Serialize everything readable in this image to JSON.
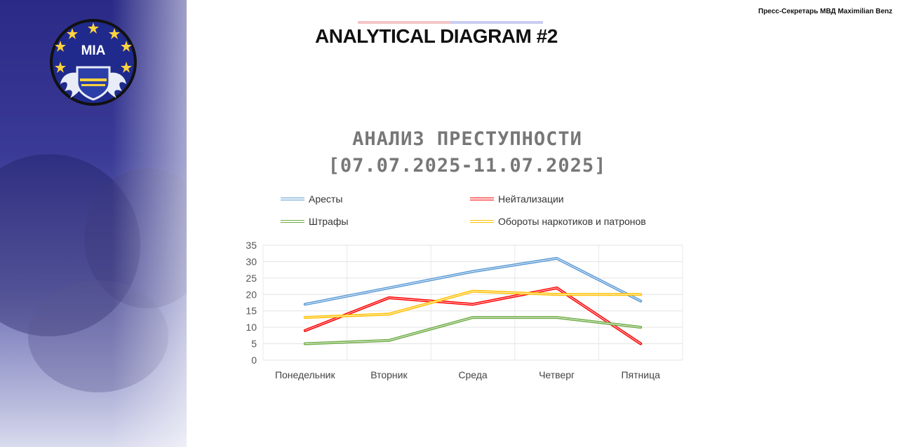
{
  "header": {
    "press_label": "Пресс-Секретарь МВД Maximilian Benz",
    "page_title": "ANALYTICAL DIAGRAM #2"
  },
  "logo": {
    "text": "MIA"
  },
  "colors": {
    "panel": "#2b2a86",
    "logo_bg": "#1f2a8c",
    "star": "#ffd23f"
  },
  "chart_data": {
    "type": "line",
    "title": [
      "АНАЛИЗ ПРЕСТУПНОСТИ",
      "[07.07.2025-11.07.2025]"
    ],
    "categories": [
      "Понедельник",
      "Вторник",
      "Среда",
      "Четверг",
      "Пятница"
    ],
    "ylim": [
      0,
      35
    ],
    "yticks": [
      0,
      5,
      10,
      15,
      20,
      25,
      30,
      35
    ],
    "grid": true,
    "legend_position": "top",
    "series": [
      {
        "name": "Аресты",
        "color": "#5b9bd5",
        "values": [
          17,
          22,
          27,
          31,
          18
        ]
      },
      {
        "name": "Нейтализации",
        "color": "#ff0000",
        "values": [
          9,
          19,
          17,
          22,
          5
        ]
      },
      {
        "name": "Штрафы",
        "color": "#70ad47",
        "values": [
          5,
          6,
          13,
          13,
          10
        ]
      },
      {
        "name": "Обороты наркотиков и патронов",
        "color": "#ffc000",
        "values": [
          13,
          14,
          21,
          20,
          20
        ]
      }
    ]
  }
}
